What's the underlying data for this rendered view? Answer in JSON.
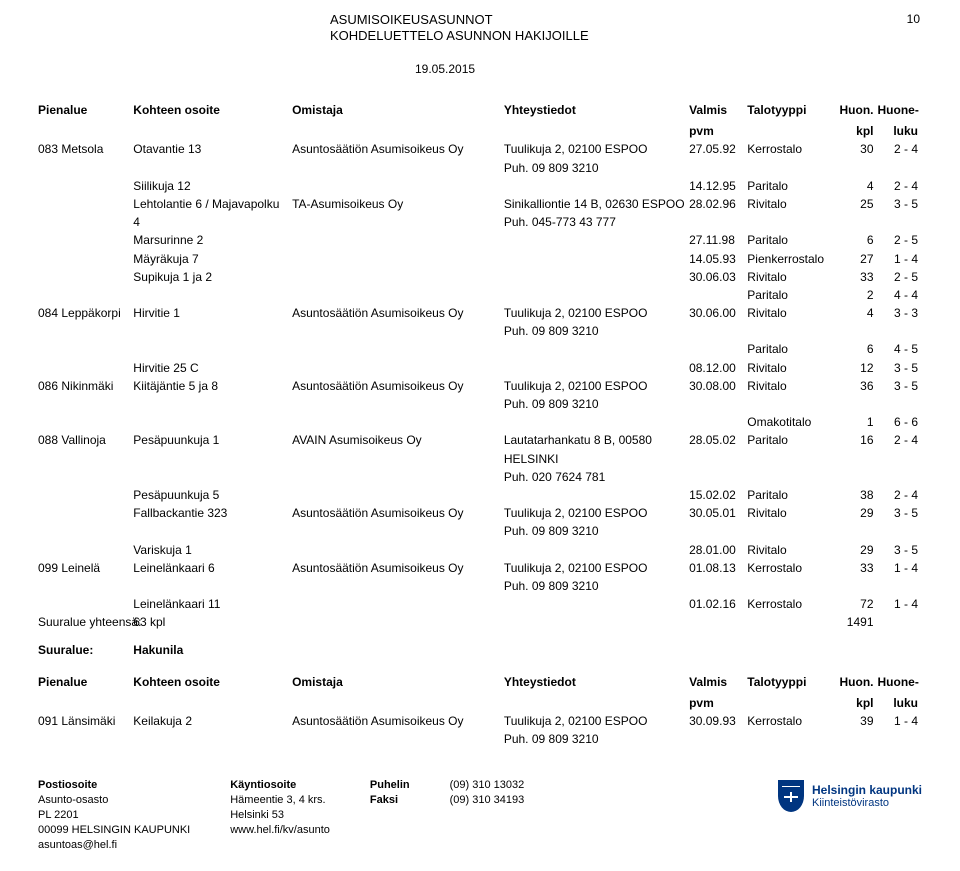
{
  "header": {
    "line1": "ASUMISOIKEUSASUNNOT",
    "line2": "KOHDELUETTELO ASUNNON HAKIJOILLE",
    "page_number": "10",
    "date": "19.05.2015"
  },
  "columns": {
    "pienalue": "Pienalue",
    "osoite": "Kohteen osoite",
    "omistaja": "Omistaja",
    "yhteystiedot": "Yhteystiedot",
    "valmis": "Valmis",
    "valmis_sub": "pvm",
    "talotyyppi": "Talotyyppi",
    "huon": "Huon.",
    "huon_sub": "kpl",
    "huoneluku": "Huone-",
    "huoneluku_sub": "luku"
  },
  "rows": [
    {
      "pienalue": "083 Metsola",
      "osoite": "Otavantie 13",
      "omistaja": "Asuntosäätiön Asumisoikeus Oy",
      "yht1": "Tuulikuja 2, 02100 ESPOO",
      "yht2": "Puh. 09 809 3210",
      "valmis": "27.05.92",
      "talo": "Kerrostalo",
      "huon": "30",
      "luku": "2 - 4"
    },
    {
      "pienalue": "",
      "osoite": "Siilikuja 12",
      "omistaja": "",
      "yht1": "",
      "yht2": "",
      "valmis": "14.12.95",
      "talo": "Paritalo",
      "huon": "4",
      "luku": "2 - 4"
    },
    {
      "pienalue": "",
      "osoite": "Lehtolantie 6 / Majavapolku",
      "omistaja": "TA-Asumisoikeus Oy",
      "yht1": "Sinikalliontie 14 B, 02630 ESPOO",
      "yht2": "Puh. 045-773 43 777",
      "valmis": "28.02.96",
      "talo": "Rivitalo",
      "huon": "25",
      "luku": "3 - 5",
      "osoite2": "4"
    },
    {
      "pienalue": "",
      "osoite": "Marsurinne 2",
      "omistaja": "",
      "yht1": "",
      "yht2": "",
      "valmis": "27.11.98",
      "talo": "Paritalo",
      "huon": "6",
      "luku": "2 - 5"
    },
    {
      "pienalue": "",
      "osoite": "Mäyräkuja 7",
      "omistaja": "",
      "yht1": "",
      "yht2": "",
      "valmis": "14.05.93",
      "talo": "Pienkerrostalo",
      "huon": "27",
      "luku": "1 - 4"
    },
    {
      "pienalue": "",
      "osoite": "Supikuja 1 ja 2",
      "omistaja": "",
      "yht1": "",
      "yht2": "",
      "valmis": "30.06.03",
      "talo": "Rivitalo",
      "huon": "33",
      "luku": "2 - 5"
    },
    {
      "pienalue": "",
      "osoite": "",
      "omistaja": "",
      "yht1": "",
      "yht2": "",
      "valmis": "",
      "talo": "Paritalo",
      "huon": "2",
      "luku": "4 - 4"
    },
    {
      "pienalue": "084 Leppäkorpi",
      "osoite": "Hirvitie 1",
      "omistaja": "Asuntosäätiön Asumisoikeus Oy",
      "yht1": "Tuulikuja 2, 02100 ESPOO",
      "yht2": "Puh. 09 809 3210",
      "valmis": "30.06.00",
      "talo": "Rivitalo",
      "huon": "4",
      "luku": "3 - 3"
    },
    {
      "pienalue": "",
      "osoite": "",
      "omistaja": "",
      "yht1": "",
      "yht2": "",
      "valmis": "",
      "talo": "Paritalo",
      "huon": "6",
      "luku": "4 - 5"
    },
    {
      "pienalue": "",
      "osoite": "Hirvitie 25 C",
      "omistaja": "",
      "yht1": "",
      "yht2": "",
      "valmis": "08.12.00",
      "talo": "Rivitalo",
      "huon": "12",
      "luku": "3 - 5"
    },
    {
      "pienalue": "086 Nikinmäki",
      "osoite": "Kiitäjäntie 5 ja 8",
      "omistaja": "Asuntosäätiön Asumisoikeus Oy",
      "yht1": "Tuulikuja 2, 02100 ESPOO",
      "yht2": "Puh. 09 809 3210",
      "valmis": "30.08.00",
      "talo": "Rivitalo",
      "huon": "36",
      "luku": "3 - 5"
    },
    {
      "pienalue": "",
      "osoite": "",
      "omistaja": "",
      "yht1": "",
      "yht2": "",
      "valmis": "",
      "talo": "Omakotitalo",
      "huon": "1",
      "luku": "6 - 6"
    },
    {
      "pienalue": "088 Vallinoja",
      "osoite": "Pesäpuunkuja 1",
      "omistaja": "AVAIN Asumisoikeus Oy",
      "yht1": "Lautatarhankatu 8 B, 00580",
      "yht2": "HELSINKI",
      "yht3": "Puh. 020 7624 781",
      "valmis": "28.05.02",
      "talo": "Paritalo",
      "huon": "16",
      "luku": "2 - 4"
    },
    {
      "pienalue": "",
      "osoite": "Pesäpuunkuja 5",
      "omistaja": "",
      "yht1": "",
      "yht2": "",
      "valmis": "15.02.02",
      "talo": "Paritalo",
      "huon": "38",
      "luku": "2 - 4"
    },
    {
      "pienalue": "",
      "osoite": "Fallbackantie 323",
      "omistaja": "Asuntosäätiön Asumisoikeus Oy",
      "yht1": "Tuulikuja 2, 02100 ESPOO",
      "yht2": "Puh. 09 809 3210",
      "valmis": "30.05.01",
      "talo": "Rivitalo",
      "huon": "29",
      "luku": "3 - 5"
    },
    {
      "pienalue": "",
      "osoite": "Variskuja 1",
      "omistaja": "",
      "yht1": "",
      "yht2": "",
      "valmis": "28.01.00",
      "talo": "Rivitalo",
      "huon": "29",
      "luku": "3 - 5"
    },
    {
      "pienalue": "099 Leinelä",
      "osoite": "Leinelänkaari 6",
      "omistaja": "Asuntosäätiön Asumisoikeus Oy",
      "yht1": "Tuulikuja 2, 02100 ESPOO",
      "yht2": "Puh. 09 809 3210",
      "valmis": "01.08.13",
      "talo": "Kerrostalo",
      "huon": "33",
      "luku": "1 - 4"
    },
    {
      "pienalue": "",
      "osoite": "Leinelänkaari 11",
      "omistaja": "",
      "yht1": "",
      "yht2": "",
      "valmis": "01.02.16",
      "talo": "Kerrostalo",
      "huon": "72",
      "luku": "1 - 4"
    }
  ],
  "totals": {
    "label": "Suuralue yhteensä:",
    "value": "63 kpl",
    "sum": "1491"
  },
  "suuralue": {
    "label": "Suuralue:",
    "value": "Hakunila"
  },
  "rows2": [
    {
      "pienalue": "091 Länsimäki",
      "osoite": "Keilakuja 2",
      "omistaja": "Asuntosäätiön Asumisoikeus Oy",
      "yht1": "Tuulikuja 2, 02100 ESPOO",
      "yht2": "Puh. 09 809 3210",
      "valmis": "30.09.93",
      "talo": "Kerrostalo",
      "huon": "39",
      "luku": "1 - 4"
    }
  ],
  "footer": {
    "c1": {
      "h": "Postiosoite",
      "l": [
        "Asunto-osasto",
        "PL 2201",
        "00099 HELSINGIN KAUPUNKI",
        "asuntoas@hel.fi"
      ]
    },
    "c2": {
      "h": "Käyntiosoite",
      "l": [
        "Hämeentie 3, 4 krs.",
        "Helsinki 53",
        "www.hel.fi/kv/asunto"
      ]
    },
    "c3": {
      "h": "Puhelin",
      "l": [
        "Faksi"
      ]
    },
    "c4": {
      "l": [
        "(09) 310 13032",
        "(09) 310 34193"
      ]
    },
    "logo": {
      "l1": "Helsingin kaupunki",
      "l2": "Kiinteistövirasto"
    }
  }
}
